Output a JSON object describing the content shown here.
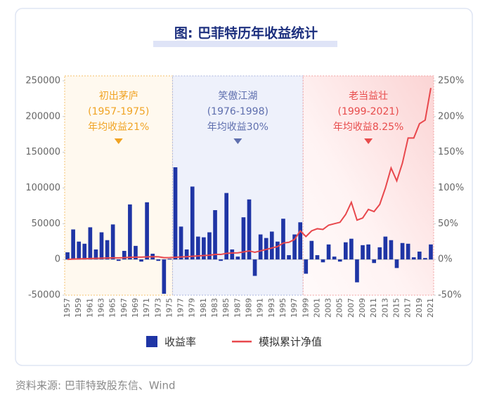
{
  "chart_data": {
    "type": "bar",
    "title": "图: 巴菲特历年收益统计",
    "categories": [
      "1957",
      null,
      "1959",
      null,
      "1961",
      null,
      "1963",
      null,
      "1965",
      null,
      "1967",
      null,
      "1969",
      null,
      "1971",
      null,
      "1973",
      null,
      "1975",
      null,
      "1977",
      null,
      "1979",
      null,
      "1981",
      null,
      "1983",
      null,
      "1985",
      null,
      "1987",
      null,
      "1989",
      null,
      "1991",
      null,
      "1993",
      null,
      "1995",
      null,
      "1997",
      null,
      "1999",
      null,
      "2001",
      null,
      "2003",
      null,
      "2005",
      null,
      "2007",
      null,
      "2009",
      null,
      "2011",
      null,
      "2013",
      null,
      "2015",
      null,
      "2017",
      null,
      "2019",
      null,
      "2021"
    ],
    "series": [
      {
        "name": "收益率",
        "type": "bar",
        "color": "#1f35a5",
        "values": [
          10000,
          42000,
          25000,
          22000,
          45000,
          14000,
          38000,
          27000,
          49000,
          -2000,
          12000,
          77000,
          19000,
          -3000,
          80000,
          8000,
          -2000,
          -48000,
          1000,
          129000,
          46000,
          14000,
          102000,
          32000,
          31000,
          38000,
          69000,
          -2000,
          93000,
          14000,
          4000,
          59000,
          84000,
          -23000,
          35000,
          30000,
          39000,
          25000,
          57000,
          6000,
          35000,
          52000,
          -20000,
          26000,
          6000,
          -4000,
          21000,
          4000,
          -3000,
          24000,
          29000,
          -32000,
          20000,
          21000,
          -5000,
          17000,
          32000,
          27000,
          -12000,
          23000,
          22000,
          3000,
          11000,
          2000,
          21000
        ]
      },
      {
        "name": "模拟累计净值",
        "type": "line",
        "axis": "y2",
        "color": "#e8474c",
        "values": [
          0,
          0.5,
          0.8,
          1,
          1.3,
          1.5,
          1.8,
          2,
          2.3,
          2.3,
          2.5,
          3,
          3.2,
          3.2,
          3.6,
          3.8,
          3.7,
          2.5,
          2.6,
          3,
          3.5,
          3.8,
          4.5,
          5,
          5.5,
          6,
          7,
          7,
          8.5,
          9,
          9.3,
          10.5,
          12,
          10,
          12,
          14,
          16,
          18,
          23,
          24,
          28,
          40,
          32,
          40,
          43,
          42,
          48,
          50,
          52,
          63,
          80,
          55,
          58,
          70,
          67,
          77,
          100,
          128,
          110,
          135,
          170,
          170,
          190,
          195,
          240
        ]
      }
    ],
    "ylim": [
      -50000,
      250000
    ],
    "yticks": [
      -50000,
      0,
      50000,
      100000,
      150000,
      200000,
      250000
    ],
    "y2lim": [
      -50,
      250
    ],
    "y2ticks": [
      {
        "value": -50,
        "label": "-50%"
      },
      {
        "value": 0,
        "label": "0%"
      },
      {
        "value": 50,
        "label": "50%"
      },
      {
        "value": 100,
        "label": "100%"
      },
      {
        "value": 150,
        "label": "150%"
      },
      {
        "value": 200,
        "label": "200%"
      },
      {
        "value": 250,
        "label": "250%"
      }
    ],
    "annotations": [
      {
        "title": "初出茅庐",
        "years": "(1957-1975)",
        "note": "年均收益21%",
        "color": "#f0a323"
      },
      {
        "title": "笑傲江湖",
        "years": "(1976-1998)",
        "note": "年均收益30%",
        "color": "#5f6fae"
      },
      {
        "title": "老当益壮",
        "years": "(1999-2021)",
        "note": "年均收益8.25%",
        "color": "#e84c4c"
      }
    ],
    "source": "资料来源: 巴菲特致股东信、Wind"
  }
}
